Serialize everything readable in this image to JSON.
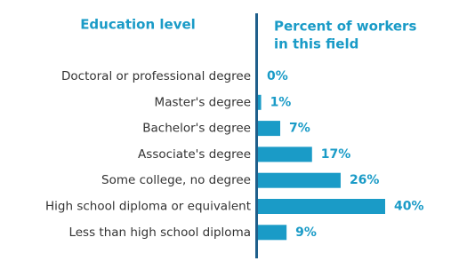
{
  "chart_data": {
    "type": "bar",
    "orientation": "horizontal",
    "category_title": "Education level",
    "value_title": [
      "Percent of workers",
      "in this field"
    ],
    "categories": [
      "Doctoral or professional degree",
      "Master's degree",
      "Bachelor's degree",
      "Associate's degree",
      "Some college, no degree",
      "High school diploma or equivalent",
      "Less than high school diploma"
    ],
    "values": [
      0,
      1,
      7,
      17,
      26,
      40,
      9
    ],
    "value_labels": [
      "0%",
      "1%",
      "7%",
      "17%",
      "26%",
      "40%",
      "9%"
    ],
    "color": "#1a9bc7",
    "xlim": [
      0,
      40
    ]
  }
}
